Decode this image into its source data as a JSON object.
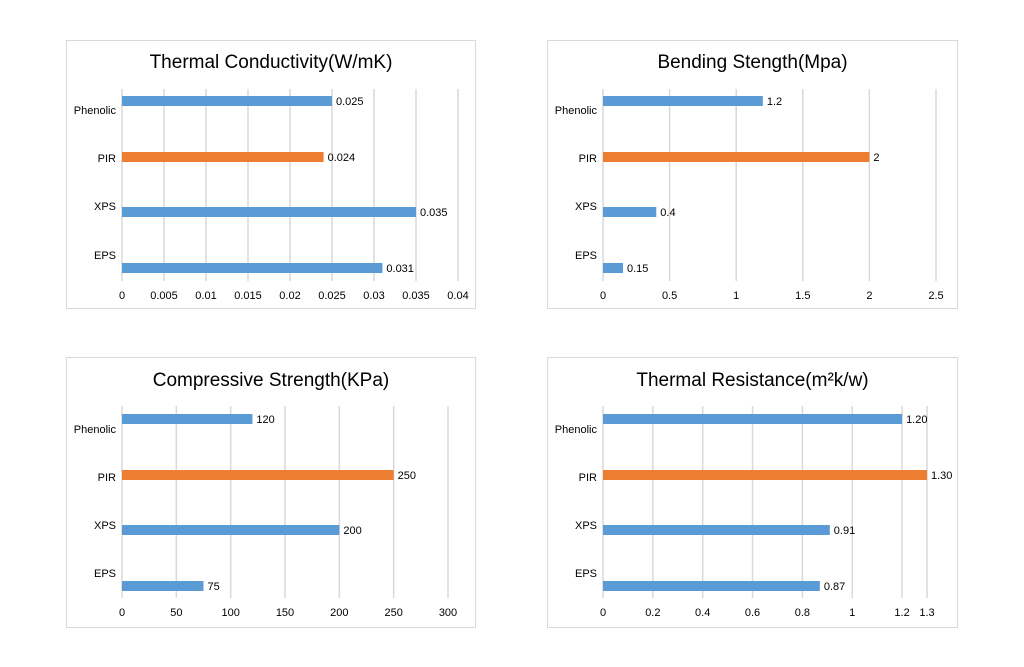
{
  "chart_data": [
    {
      "type": "bar",
      "orientation": "horizontal",
      "title": "Thermal Conductivity(W/mK)",
      "categories": [
        "Phenolic",
        "PIR",
        "XPS",
        "EPS"
      ],
      "values": [
        0.025,
        0.024,
        0.035,
        0.031
      ],
      "value_labels": [
        "0.025",
        "0.024",
        "0.035",
        "0.031"
      ],
      "ticks": [
        "0",
        "0.005",
        "0.01",
        "0.015",
        "0.02",
        "0.025",
        "0.03",
        "0.035",
        "0.04"
      ],
      "xlim": [
        0,
        0.04
      ],
      "grid": true,
      "highlight_category": "PIR",
      "colors": {
        "bar": "#5b9bd5",
        "highlight": "#ed7d31",
        "grid": "#d9d9d9"
      }
    },
    {
      "type": "bar",
      "orientation": "horizontal",
      "title": "Bending Stength(Mpa)",
      "categories": [
        "Phenolic",
        "PIR",
        "XPS",
        "EPS"
      ],
      "values": [
        1.2,
        2,
        0.4,
        0.15
      ],
      "value_labels": [
        "1.2",
        "2",
        "0.4",
        "0.15"
      ],
      "ticks": [
        "0",
        "0.5",
        "1",
        "1.5",
        "2",
        "2.5"
      ],
      "xlim": [
        0,
        2.5
      ],
      "grid": true,
      "highlight_category": "PIR",
      "colors": {
        "bar": "#5b9bd5",
        "highlight": "#ed7d31",
        "grid": "#d9d9d9"
      }
    },
    {
      "type": "bar",
      "orientation": "horizontal",
      "title": "Compressive Strength(KPa)",
      "categories": [
        "Phenolic",
        "PIR",
        "XPS",
        "EPS"
      ],
      "values": [
        120,
        250,
        200,
        75
      ],
      "value_labels": [
        "120",
        "250",
        "200",
        "75"
      ],
      "ticks": [
        "0",
        "50",
        "100",
        "150",
        "200",
        "250",
        "300"
      ],
      "xlim": [
        0,
        300
      ],
      "grid": true,
      "highlight_category": "PIR",
      "colors": {
        "bar": "#5b9bd5",
        "highlight": "#ed7d31",
        "grid": "#d9d9d9"
      }
    },
    {
      "type": "bar",
      "orientation": "horizontal",
      "title": "Thermal Resistance(m²k/w)",
      "categories": [
        "Phenolic",
        "PIR",
        "XPS",
        "EPS"
      ],
      "values": [
        1.2,
        1.3,
        0.91,
        0.87
      ],
      "value_labels": [
        "1.20",
        "1.30",
        "0.91",
        "0.87"
      ],
      "ticks": [
        "0",
        "0.2",
        "0.4",
        "0.6",
        "0.8",
        "1",
        "1.2",
        "1.3"
      ],
      "tick_values": [
        0,
        0.2,
        0.4,
        0.6,
        0.8,
        1,
        1.2,
        1.3
      ],
      "xlim": [
        0,
        1.3
      ],
      "grid": true,
      "highlight_category": "PIR",
      "colors": {
        "bar": "#5b9bd5",
        "highlight": "#ed7d31",
        "grid": "#d9d9d9"
      }
    }
  ]
}
